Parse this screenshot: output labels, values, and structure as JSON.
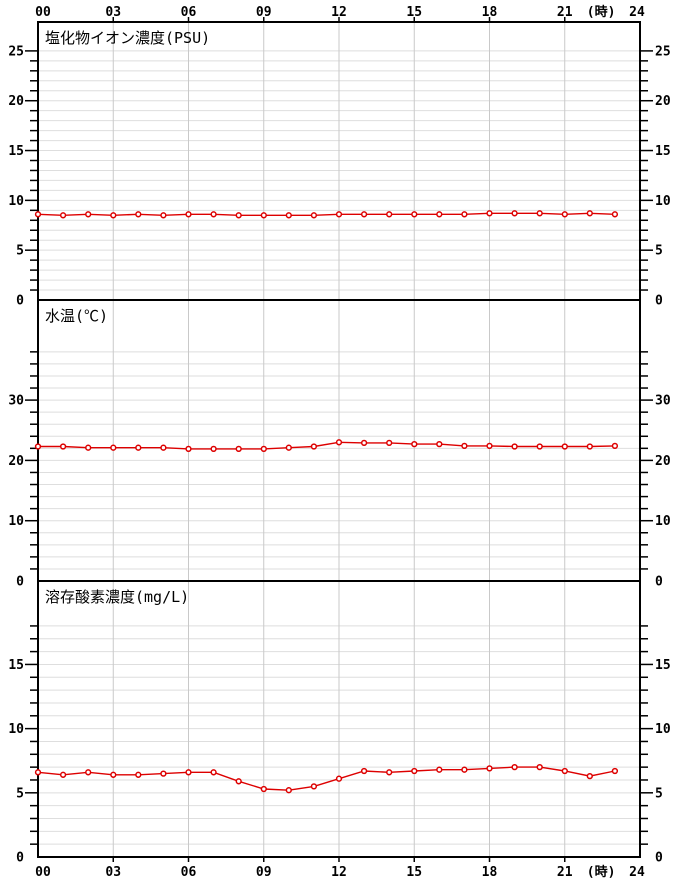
{
  "colors": {
    "line": "#dd0000",
    "marker_fill": "#ffffff",
    "grid_horizontal": "#dedede",
    "grid_vertical": "#c9c9c9",
    "axis": "#000000",
    "text": "#000000",
    "background": "#ffffff"
  },
  "x_axis": {
    "unit_label": "(時)",
    "unit_label_hour": 22.45,
    "hours_total": 24,
    "tick_hours": [
      0,
      3,
      6,
      9,
      12,
      15,
      18,
      21,
      24
    ],
    "tick_labels": [
      "00",
      "03",
      "06",
      "09",
      "12",
      "15",
      "18",
      "21",
      "24"
    ]
  },
  "chart_data": [
    {
      "type": "line",
      "title": "塩化物イオン濃度(PSU)",
      "x": [
        0,
        1,
        2,
        3,
        4,
        5,
        6,
        7,
        8,
        9,
        10,
        11,
        12,
        13,
        14,
        15,
        16,
        17,
        18,
        19,
        20,
        21,
        22,
        23
      ],
      "values": [
        8.6,
        8.5,
        8.6,
        8.5,
        8.6,
        8.5,
        8.6,
        8.6,
        8.5,
        8.5,
        8.5,
        8.5,
        8.6,
        8.6,
        8.6,
        8.6,
        8.6,
        8.6,
        8.7,
        8.7,
        8.7,
        8.6,
        8.7,
        8.6
      ],
      "ylim": [
        0,
        27.9
      ],
      "ytick_step": 1,
      "ytick_max": 25,
      "ylabel_step": 5,
      "ytick_labels": [
        "0",
        "5",
        "10",
        "15",
        "20",
        "25"
      ],
      "grid": true,
      "legend": "none"
    },
    {
      "type": "line",
      "title": "水温(℃)",
      "x": [
        0,
        1,
        2,
        3,
        4,
        5,
        6,
        7,
        8,
        9,
        10,
        11,
        12,
        13,
        14,
        15,
        16,
        17,
        18,
        19,
        20,
        21,
        22,
        23
      ],
      "values": [
        22.3,
        22.3,
        22.1,
        22.1,
        22.1,
        22.1,
        21.9,
        21.9,
        21.9,
        21.9,
        22.1,
        22.3,
        23.0,
        22.9,
        22.9,
        22.7,
        22.7,
        22.4,
        22.4,
        22.3,
        22.3,
        22.3,
        22.3,
        22.4
      ],
      "ylim": [
        0,
        46.6
      ],
      "ytick_step": 2,
      "ytick_max": 38,
      "ylabel_step": 10,
      "ytick_labels": [
        "0",
        "10",
        "20",
        "30"
      ],
      "grid": true,
      "legend": "none"
    },
    {
      "type": "line",
      "title": "溶存酸素濃度(mg/L)",
      "x": [
        0,
        1,
        2,
        3,
        4,
        5,
        6,
        7,
        8,
        9,
        10,
        11,
        12,
        13,
        14,
        15,
        16,
        17,
        18,
        19,
        20,
        21,
        22,
        23
      ],
      "values": [
        6.6,
        6.4,
        6.6,
        6.4,
        6.4,
        6.5,
        6.6,
        6.6,
        5.9,
        5.3,
        5.2,
        5.5,
        6.1,
        6.7,
        6.6,
        6.7,
        6.8,
        6.8,
        6.9,
        7.0,
        7.0,
        6.7,
        6.3,
        6.7
      ],
      "ylim": [
        0,
        21.5
      ],
      "ytick_step": 1,
      "ytick_max": 18,
      "ylabel_step": 5,
      "ytick_labels": [
        "0",
        "5",
        "10",
        "15"
      ],
      "grid": true,
      "legend": "none"
    }
  ]
}
